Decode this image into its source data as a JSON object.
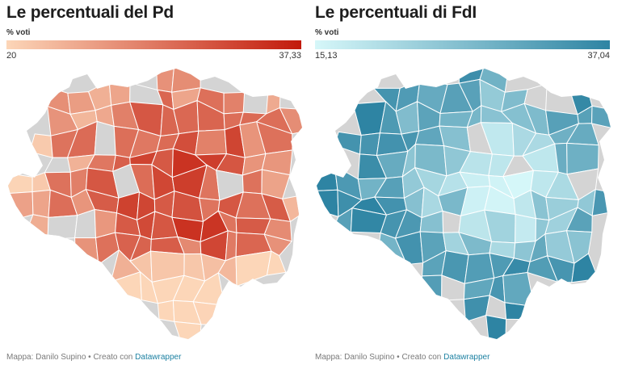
{
  "maps": [
    {
      "title": "Le percentuali del Pd",
      "legend": {
        "title": "% voti",
        "min": "20",
        "max": "37,33",
        "color_low": "#fcd6b8",
        "color_high": "#c21a0b"
      },
      "footer": {
        "prefix": "Mappa: Danilo Supino • Creato con ",
        "link": "Datawrapper"
      }
    },
    {
      "title": "Le percentuali di FdI",
      "legend": {
        "title": "% voti",
        "min": "15,13",
        "max": "37,04",
        "color_low": "#d6f7f9",
        "color_high": "#2e84a3"
      },
      "footer": {
        "prefix": "Mappa: Danilo Supino • Creato con ",
        "link": "Datawrapper"
      }
    }
  ],
  "colors": {
    "no_data": "#d4d4d4",
    "border": "#ffffff",
    "link": "#1d81a2"
  }
}
